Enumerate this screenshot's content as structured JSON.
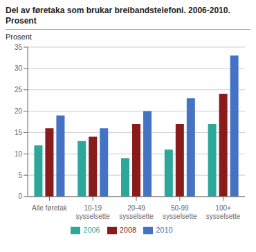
{
  "chart_data": {
    "type": "bar",
    "title": "Del av føretaka som brukar breibandstelefoni. 2006-2010.",
    "subtitle": "Prosent",
    "y_label": "Prosent",
    "categories": [
      "Alle føretak",
      "10-19\nsysselsette",
      "20-49\nsysselsette",
      "50-99\nsysselsette",
      "100+\nsysselsette"
    ],
    "series": [
      {
        "name": "2006",
        "color": "#2ca89a",
        "values": [
          12,
          13,
          9,
          11,
          17
        ]
      },
      {
        "name": "2008",
        "color": "#8b1a1a",
        "values": [
          16,
          14,
          17,
          17,
          24
        ]
      },
      {
        "name": "2010",
        "color": "#4472c4",
        "values": [
          19,
          16,
          20,
          23,
          33
        ]
      }
    ],
    "ylim": [
      0,
      35
    ],
    "yticks": [
      0,
      5,
      10,
      15,
      20,
      25,
      30,
      35
    ],
    "grid": true,
    "legend": "bottom"
  }
}
